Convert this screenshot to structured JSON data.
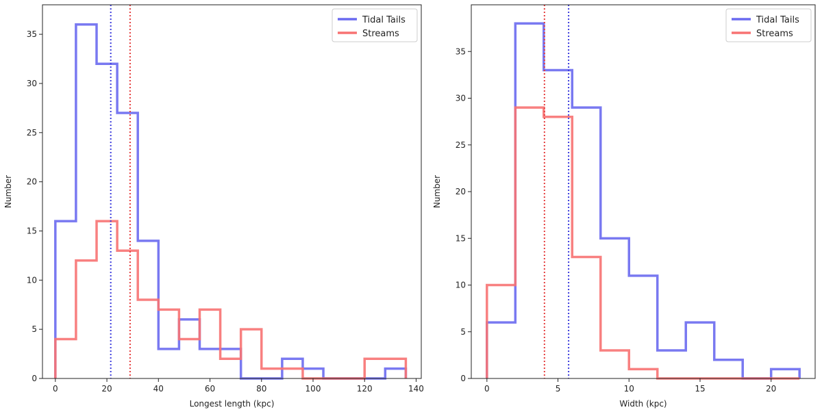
{
  "chart_data": [
    {
      "type": "histogram",
      "xlabel": "Longest length (kpc)",
      "ylabel": "Number",
      "xlim": [
        -5,
        142
      ],
      "ylim": [
        0,
        38
      ],
      "xticks": [
        0,
        20,
        40,
        60,
        80,
        100,
        120,
        140
      ],
      "yticks": [
        0,
        5,
        10,
        15,
        20,
        25,
        30,
        35
      ],
      "grid": false,
      "legend_position": "top-right",
      "bin_edges": [
        0,
        8,
        16,
        24,
        32,
        40,
        48,
        56,
        64,
        72,
        80,
        88,
        96,
        104,
        112,
        120,
        128,
        136
      ],
      "series": [
        {
          "name": "Tidal Tails",
          "color": "#6a6af0",
          "counts": [
            16,
            36,
            32,
            27,
            14,
            3,
            6,
            3,
            3,
            0,
            0,
            2,
            1,
            0,
            0,
            0,
            1
          ]
        },
        {
          "name": "Streams",
          "color": "#f77272",
          "counts": [
            4,
            12,
            16,
            13,
            8,
            7,
            4,
            7,
            2,
            5,
            1,
            1,
            0,
            0,
            0,
            2,
            2
          ]
        }
      ],
      "vlines": [
        {
          "x": 21.5,
          "color": "#3b3bdd"
        },
        {
          "x": 29,
          "color": "#e53b3b"
        }
      ]
    },
    {
      "type": "histogram",
      "xlabel": "Width (kpc)",
      "ylabel": "Number",
      "xlim": [
        -1.1,
        23.1
      ],
      "ylim": [
        0,
        40
      ],
      "xticks": [
        0,
        5,
        10,
        15,
        20
      ],
      "yticks": [
        0,
        5,
        10,
        15,
        20,
        25,
        30,
        35
      ],
      "grid": false,
      "legend_position": "top-right",
      "bin_edges": [
        0,
        2,
        4,
        6,
        8,
        10,
        12,
        14,
        16,
        18,
        20,
        22
      ],
      "series": [
        {
          "name": "Tidal Tails",
          "color": "#6a6af0",
          "counts": [
            6,
            38,
            33,
            29,
            15,
            11,
            3,
            6,
            2,
            0,
            1
          ]
        },
        {
          "name": "Streams",
          "color": "#f77272",
          "counts": [
            10,
            29,
            28,
            13,
            3,
            1,
            0,
            0,
            0,
            0,
            0
          ]
        }
      ],
      "vlines": [
        {
          "x": 4.05,
          "color": "#e53b3b"
        },
        {
          "x": 5.75,
          "color": "#3b3bdd"
        }
      ]
    }
  ]
}
